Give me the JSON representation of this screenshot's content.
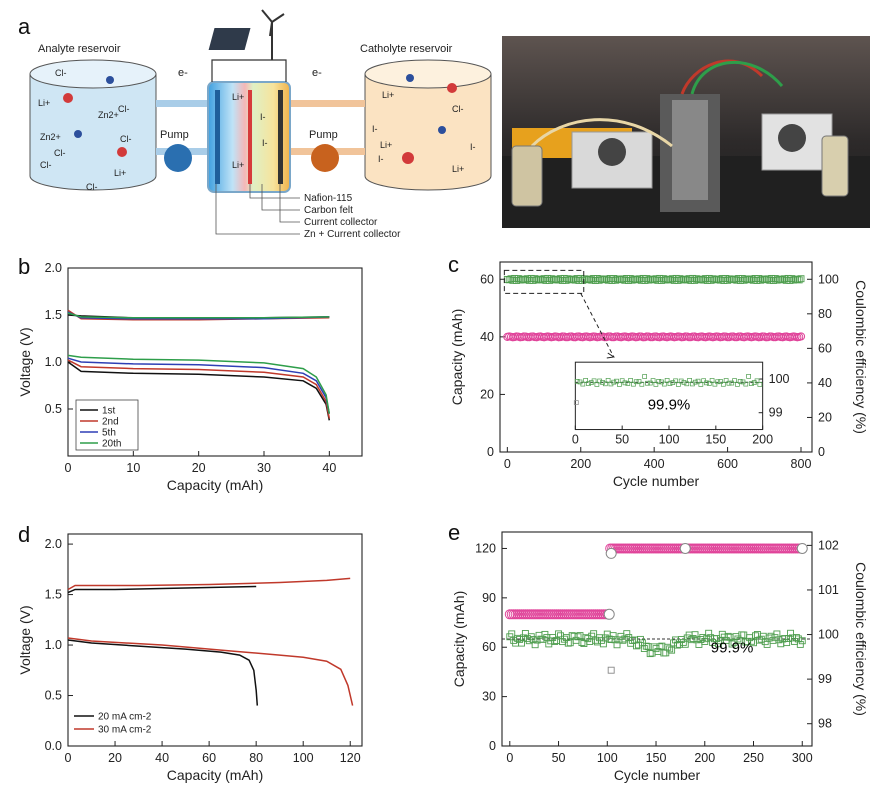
{
  "panel_a": {
    "letter": "a",
    "anolyte_title": "Analyte reservoir",
    "catholyte_title": "Catholyte reservoir",
    "pump_left": "Pump",
    "pump_right": "Pump",
    "electron_left": "e-",
    "electron_right": "e-",
    "anolyte_ions": [
      "Cl-",
      "Li+",
      "Cl-",
      "Zn2+",
      "Zn2+",
      "Cl-",
      "Cl-",
      "Li+",
      "Cl-",
      "Cl-"
    ],
    "catholyte_ions": [
      "Li+",
      "Cl-",
      "I-",
      "I-",
      "Li+",
      "I-",
      "Li+"
    ],
    "cell_ions": [
      "Li+",
      "I-",
      "I-",
      "Li+"
    ],
    "callouts": [
      "Nafion-115",
      "Carbon felt",
      "Current collector",
      "Zn + Current collector"
    ],
    "colors": {
      "pump_left": "#2a6fb0",
      "pump_right": "#c8621e",
      "anolyte_tank": "#cfe6f4",
      "catholyte_tank": "#fbe3c2"
    }
  },
  "panel_b": {
    "letter": "b"
  },
  "panel_c": {
    "letter": "c",
    "inset_label": "99.9%"
  },
  "panel_d": {
    "letter": "d"
  },
  "panel_e": {
    "letter": "e",
    "ce_label": "99.9%"
  },
  "chart_data": [
    {
      "id": "b",
      "type": "line",
      "title": "",
      "xlabel": "Capacity (mAh)",
      "ylabel": "Voltage (V)",
      "xlim": [
        0,
        45
      ],
      "ylim": [
        0.0,
        2.0
      ],
      "xticks": [
        0,
        10,
        20,
        30,
        40
      ],
      "yticks": [
        0.5,
        1.0,
        1.5,
        2.0
      ],
      "legend": [
        "1st",
        "2nd",
        "5th",
        "20th"
      ],
      "series": [
        {
          "name": "1st",
          "color": "#111111",
          "charge": [
            [
              0,
              1.5
            ],
            [
              2,
              1.49
            ],
            [
              10,
              1.47
            ],
            [
              20,
              1.47
            ],
            [
              30,
              1.47
            ],
            [
              40,
              1.48
            ]
          ],
          "discharge": [
            [
              0,
              1.0
            ],
            [
              2,
              0.9
            ],
            [
              10,
              0.88
            ],
            [
              20,
              0.87
            ],
            [
              30,
              0.84
            ],
            [
              36,
              0.8
            ],
            [
              38,
              0.72
            ],
            [
              39.5,
              0.55
            ],
            [
              40,
              0.38
            ]
          ]
        },
        {
          "name": "2nd",
          "color": "#c0392b",
          "charge": [
            [
              0,
              1.55
            ],
            [
              2,
              1.46
            ],
            [
              10,
              1.45
            ],
            [
              20,
              1.45
            ],
            [
              30,
              1.46
            ],
            [
              40,
              1.47
            ]
          ],
          "discharge": [
            [
              0,
              1.02
            ],
            [
              2,
              0.95
            ],
            [
              10,
              0.93
            ],
            [
              20,
              0.92
            ],
            [
              30,
              0.89
            ],
            [
              36,
              0.84
            ],
            [
              38,
              0.76
            ],
            [
              39.5,
              0.58
            ],
            [
              40,
              0.4
            ]
          ]
        },
        {
          "name": "5th",
          "color": "#2e3fb5",
          "charge": [
            [
              0,
              1.53
            ],
            [
              2,
              1.47
            ],
            [
              10,
              1.46
            ],
            [
              20,
              1.46
            ],
            [
              30,
              1.46
            ],
            [
              40,
              1.48
            ]
          ],
          "discharge": [
            [
              0,
              1.04
            ],
            [
              2,
              1.0
            ],
            [
              10,
              0.98
            ],
            [
              20,
              0.97
            ],
            [
              30,
              0.94
            ],
            [
              36,
              0.88
            ],
            [
              38,
              0.8
            ],
            [
              39.5,
              0.62
            ],
            [
              40,
              0.45
            ]
          ]
        },
        {
          "name": "20th",
          "color": "#2e9e4a",
          "charge": [
            [
              0,
              1.52
            ],
            [
              2,
              1.48
            ],
            [
              10,
              1.47
            ],
            [
              20,
              1.47
            ],
            [
              30,
              1.47
            ],
            [
              40,
              1.48
            ]
          ],
          "discharge": [
            [
              0,
              1.07
            ],
            [
              2,
              1.05
            ],
            [
              10,
              1.03
            ],
            [
              20,
              1.02
            ],
            [
              30,
              0.99
            ],
            [
              36,
              0.93
            ],
            [
              38,
              0.84
            ],
            [
              39.5,
              0.65
            ],
            [
              40,
              0.45
            ]
          ]
        }
      ]
    },
    {
      "id": "c",
      "type": "scatter",
      "xlabel": "Cycle number",
      "ylabel": "Capacity (mAh)",
      "y2label": "Coulombic efficiency (%)",
      "xlim": [
        -20,
        830
      ],
      "ylim": [
        0,
        66
      ],
      "y2lim": [
        0,
        110
      ],
      "xticks": [
        0,
        200,
        400,
        600,
        800
      ],
      "yticks": [
        0,
        20,
        40,
        60
      ],
      "y2ticks": [
        0,
        20,
        40,
        60,
        80,
        100
      ],
      "series": [
        {
          "name": "Capacity",
          "axis": "left",
          "color": "#e0449a",
          "value": 40,
          "range": [
            0,
            800
          ]
        },
        {
          "name": "Coulombic efficiency",
          "axis": "right",
          "color": "#4f9e4f",
          "value": 99.9,
          "range": [
            0,
            800
          ]
        }
      ],
      "inset": {
        "xlim": [
          0,
          200
        ],
        "ylim": [
          98.5,
          100.5
        ],
        "xticks": [
          0,
          50,
          100,
          150,
          200
        ],
        "yticks": [
          99,
          100
        ],
        "label": "99.9%"
      }
    },
    {
      "id": "d",
      "type": "line",
      "xlabel": "Capacity (mAh)",
      "ylabel": "Voltage (V)",
      "xlim": [
        0,
        125
      ],
      "ylim": [
        0.0,
        2.1
      ],
      "xticks": [
        0,
        20,
        40,
        60,
        80,
        100,
        120
      ],
      "yticks": [
        0.0,
        0.5,
        1.0,
        1.5,
        2.0
      ],
      "legend": [
        "20 mA cm-2",
        "30 mA cm-2"
      ],
      "series": [
        {
          "name": "20 mA cm-2",
          "color": "#111111",
          "charge": [
            [
              0,
              1.52
            ],
            [
              3,
              1.55
            ],
            [
              20,
              1.55
            ],
            [
              40,
              1.56
            ],
            [
              60,
              1.57
            ],
            [
              80,
              1.58
            ]
          ],
          "discharge": [
            [
              0,
              1.05
            ],
            [
              10,
              1.02
            ],
            [
              30,
              0.99
            ],
            [
              50,
              0.96
            ],
            [
              65,
              0.93
            ],
            [
              73,
              0.9
            ],
            [
              77,
              0.85
            ],
            [
              79,
              0.75
            ],
            [
              80,
              0.55
            ],
            [
              80.5,
              0.4
            ]
          ]
        },
        {
          "name": "30 mA cm-2",
          "color": "#c0392b",
          "charge": [
            [
              0,
              1.55
            ],
            [
              3,
              1.59
            ],
            [
              30,
              1.59
            ],
            [
              60,
              1.6
            ],
            [
              90,
              1.62
            ],
            [
              110,
              1.64
            ],
            [
              120,
              1.66
            ]
          ],
          "discharge": [
            [
              0,
              1.07
            ],
            [
              10,
              1.04
            ],
            [
              40,
              1.0
            ],
            [
              70,
              0.94
            ],
            [
              90,
              0.9
            ],
            [
              100,
              0.88
            ],
            [
              110,
              0.84
            ],
            [
              116,
              0.76
            ],
            [
              119,
              0.6
            ],
            [
              121,
              0.4
            ]
          ]
        }
      ]
    },
    {
      "id": "e",
      "type": "scatter",
      "xlabel": "Cycle number",
      "ylabel": "Capacity (mAh)",
      "y2label": "Coulombic efficiency (%)",
      "xlim": [
        -8,
        310
      ],
      "ylim": [
        0,
        130
      ],
      "y2lim": [
        97.5,
        102.3
      ],
      "xticks": [
        0,
        50,
        100,
        150,
        200,
        250,
        300
      ],
      "yticks": [
        0,
        30,
        60,
        90,
        120
      ],
      "y2ticks": [
        98,
        99,
        100,
        101,
        102
      ],
      "series": [
        {
          "name": "Capacity 80 mAh",
          "axis": "left",
          "color": "#e0449a",
          "value": 80,
          "range": [
            0,
            102
          ]
        },
        {
          "name": "Capacity 120 mAh",
          "axis": "left",
          "color": "#e0449a",
          "value": 120,
          "range": [
            103,
            300
          ]
        },
        {
          "name": "Coulombic efficiency",
          "axis": "right",
          "color": "#4f9e4f",
          "value": 99.9,
          "range": [
            0,
            300
          ]
        }
      ],
      "label": "99.9%"
    }
  ]
}
